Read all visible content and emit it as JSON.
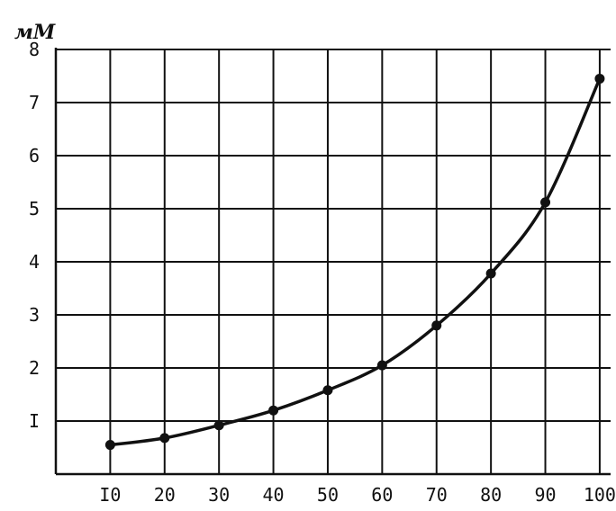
{
  "chart_data": {
    "type": "line",
    "ylabel": "мМ",
    "x": [
      10,
      20,
      30,
      40,
      50,
      60,
      70,
      80,
      90,
      100
    ],
    "series": [
      {
        "values": [
          0.55,
          0.68,
          0.92,
          1.2,
          1.58,
          2.05,
          2.8,
          3.78,
          5.12,
          7.45
        ]
      }
    ],
    "x_ticks": [
      10,
      20,
      30,
      40,
      50,
      60,
      70,
      80,
      90,
      100
    ],
    "x_tick_labels": [
      "I0",
      "20",
      "30",
      "40",
      "50",
      "60",
      "70",
      "80",
      "90",
      "100"
    ],
    "y_ticks": [
      1,
      2,
      3,
      4,
      5,
      6,
      7,
      8
    ],
    "y_tick_labels": [
      "I",
      "2",
      "3",
      "4",
      "5",
      "6",
      "7",
      "8"
    ],
    "xlim": [
      0,
      102
    ],
    "ylim": [
      0,
      8
    ],
    "grid": true,
    "line_color": "#111111"
  }
}
